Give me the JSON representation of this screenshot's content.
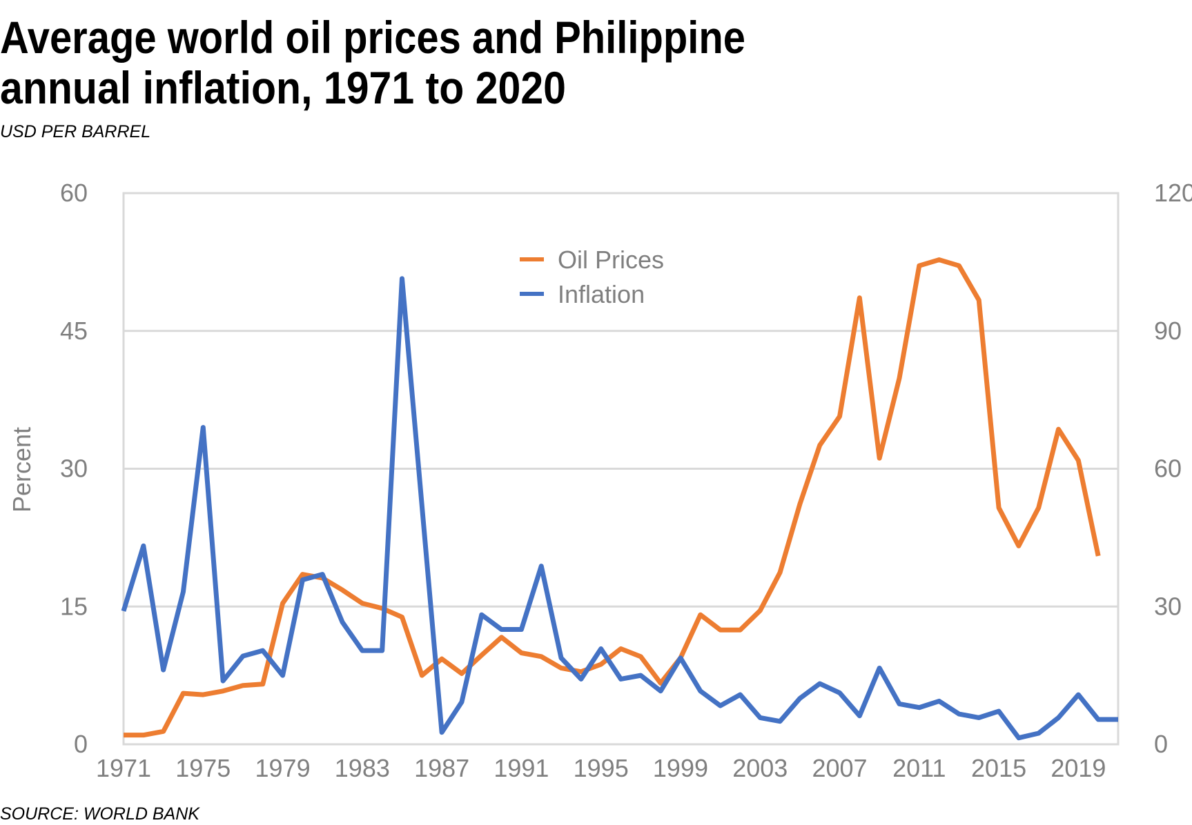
{
  "chart_data": {
    "type": "line",
    "title": [
      "Average world oil prices and Philippine",
      "annual inflation, 1971 to 2020"
    ],
    "subtitle": "USD PER BARREL",
    "source": "SOURCE:  WORLD BANK",
    "y_label": "Percent",
    "x": [
      1971,
      1972,
      1973,
      1974,
      1975,
      1976,
      1977,
      1978,
      1979,
      1980,
      1981,
      1982,
      1983,
      1984,
      1985,
      1986,
      1987,
      1988,
      1989,
      1990,
      1991,
      1992,
      1993,
      1994,
      1995,
      1996,
      1997,
      1998,
      1999,
      2000,
      2001,
      2002,
      2003,
      2004,
      2005,
      2006,
      2007,
      2008,
      2009,
      2010,
      2011,
      2012,
      2013,
      2014,
      2015,
      2016,
      2017,
      2018,
      2019,
      2020,
      2021
    ],
    "xlim": [
      1971,
      2021
    ],
    "xticks": [
      1971,
      1975,
      1979,
      1983,
      1987,
      1991,
      1995,
      1999,
      2003,
      2007,
      2011,
      2015,
      2019
    ],
    "ylim": [
      0,
      60
    ],
    "yticks": [
      0,
      15,
      30,
      45,
      60
    ],
    "y2lim": [
      0,
      120
    ],
    "y2ticks": [
      0,
      30,
      60,
      90,
      120
    ],
    "grid": true,
    "legend": "top-center",
    "series": [
      {
        "name": "Oil Prices",
        "color": "#ed7d31",
        "axis": "y2",
        "values": [
          2.0,
          2.0,
          2.8,
          11.1,
          10.8,
          11.6,
          12.8,
          13.1,
          30.7,
          37.0,
          36.2,
          33.6,
          30.7,
          29.6,
          27.7,
          15.0,
          18.6,
          15.4,
          19.4,
          23.3,
          19.9,
          19.1,
          16.6,
          15.8,
          17.4,
          20.8,
          19.1,
          13.3,
          18.8,
          28.2,
          24.9,
          24.9,
          29.1,
          37.4,
          52.3,
          65.1,
          71.4,
          97.2,
          62.3,
          79.7,
          104.2,
          105.5,
          104.2,
          96.7,
          51.5,
          43.2,
          51.5,
          68.6,
          61.8,
          41.0,
          null
        ]
      },
      {
        "name": "Inflation",
        "color": "#4472c4",
        "values": [
          14.5,
          21.6,
          8.1,
          16.6,
          34.5,
          6.9,
          9.6,
          10.2,
          7.5,
          17.9,
          18.5,
          13.3,
          10.2,
          10.2,
          50.7,
          26.0,
          1.3,
          4.6,
          14.1,
          12.5,
          12.5,
          19.4,
          9.4,
          7.1,
          10.4,
          7.1,
          7.5,
          5.8,
          9.4,
          5.8,
          4.2,
          5.4,
          2.9,
          2.5,
          5.0,
          6.6,
          5.6,
          3.1,
          8.3,
          4.4,
          4.0,
          4.7,
          3.3,
          2.9,
          3.6,
          0.7,
          1.2,
          2.9,
          5.4,
          2.7,
          2.7
        ]
      }
    ]
  }
}
